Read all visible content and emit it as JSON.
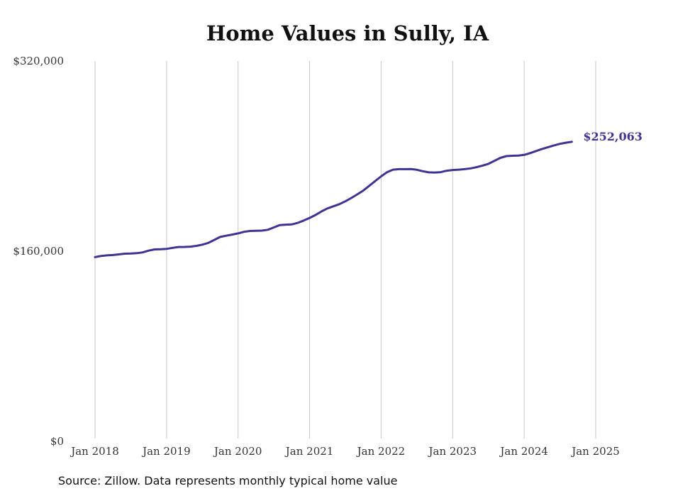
{
  "chart_data": {
    "type": "line",
    "title": "Home Values in Sully, IA",
    "xlabel": "",
    "ylabel": "",
    "ylim": [
      0,
      320000
    ],
    "y_ticks": [
      {
        "value": 0,
        "label": "$0"
      },
      {
        "value": 160000,
        "label": "$160,000"
      },
      {
        "value": 320000,
        "label": "$320,000"
      }
    ],
    "x_ticks": [
      {
        "value": "2018-01",
        "label": "Jan 2018"
      },
      {
        "value": "2019-01",
        "label": "Jan 2019"
      },
      {
        "value": "2020-01",
        "label": "Jan 2020"
      },
      {
        "value": "2021-01",
        "label": "Jan 2021"
      },
      {
        "value": "2022-01",
        "label": "Jan 2022"
      },
      {
        "value": "2023-01",
        "label": "Jan 2023"
      },
      {
        "value": "2024-01",
        "label": "Jan 2024"
      },
      {
        "value": "2025-01",
        "label": "Jan 2025"
      }
    ],
    "grid": {
      "vertical": true,
      "horizontal": false
    },
    "line_color": "#3d3591",
    "grid_color": "#c8c8c8",
    "end_label": "$252,063",
    "series": [
      {
        "points": [
          [
            "2018-01",
            155000
          ],
          [
            "2018-02",
            156000
          ],
          [
            "2018-03",
            156500
          ],
          [
            "2018-04",
            156800
          ],
          [
            "2018-05",
            157300
          ],
          [
            "2018-06",
            157900
          ],
          [
            "2018-07",
            158000
          ],
          [
            "2018-08",
            158300
          ],
          [
            "2018-09",
            159000
          ],
          [
            "2018-10",
            160500
          ],
          [
            "2018-11",
            161500
          ],
          [
            "2018-12",
            161600
          ],
          [
            "2019-01",
            162000
          ],
          [
            "2019-02",
            162800
          ],
          [
            "2019-03",
            163500
          ],
          [
            "2019-04",
            163600
          ],
          [
            "2019-05",
            163800
          ],
          [
            "2019-06",
            164500
          ],
          [
            "2019-07",
            165500
          ],
          [
            "2019-08",
            167000
          ],
          [
            "2019-09",
            169500
          ],
          [
            "2019-10",
            172000
          ],
          [
            "2019-11",
            173000
          ],
          [
            "2019-12",
            174000
          ],
          [
            "2020-01",
            175000
          ],
          [
            "2020-02",
            176300
          ],
          [
            "2020-03",
            177000
          ],
          [
            "2020-04",
            177200
          ],
          [
            "2020-05",
            177300
          ],
          [
            "2020-06",
            178000
          ],
          [
            "2020-07",
            180000
          ],
          [
            "2020-08",
            182000
          ],
          [
            "2020-09",
            182300
          ],
          [
            "2020-10",
            182500
          ],
          [
            "2020-11",
            183800
          ],
          [
            "2020-12",
            185800
          ],
          [
            "2021-01",
            188000
          ],
          [
            "2021-02",
            190500
          ],
          [
            "2021-03",
            193500
          ],
          [
            "2021-04",
            196000
          ],
          [
            "2021-05",
            197800
          ],
          [
            "2021-06",
            199600
          ],
          [
            "2021-07",
            202000
          ],
          [
            "2021-08",
            204800
          ],
          [
            "2021-09",
            207800
          ],
          [
            "2021-10",
            211000
          ],
          [
            "2021-11",
            215000
          ],
          [
            "2021-12",
            219000
          ],
          [
            "2022-01",
            223000
          ],
          [
            "2022-02",
            226500
          ],
          [
            "2022-03",
            228600
          ],
          [
            "2022-04",
            229000
          ],
          [
            "2022-05",
            229000
          ],
          [
            "2022-06",
            229100
          ],
          [
            "2022-07",
            228500
          ],
          [
            "2022-08",
            227300
          ],
          [
            "2022-09",
            226300
          ],
          [
            "2022-10",
            226200
          ],
          [
            "2022-11",
            226500
          ],
          [
            "2022-12",
            227700
          ],
          [
            "2023-01",
            228300
          ],
          [
            "2023-02",
            228600
          ],
          [
            "2023-03",
            229000
          ],
          [
            "2023-04",
            229700
          ],
          [
            "2023-05",
            230700
          ],
          [
            "2023-06",
            232000
          ],
          [
            "2023-07",
            233500
          ],
          [
            "2023-08",
            236000
          ],
          [
            "2023-09",
            238500
          ],
          [
            "2023-10",
            240000
          ],
          [
            "2023-11",
            240300
          ],
          [
            "2023-12",
            240500
          ],
          [
            "2024-01",
            241000
          ],
          [
            "2024-02",
            242500
          ],
          [
            "2024-03",
            244300
          ],
          [
            "2024-04",
            246000
          ],
          [
            "2024-05",
            247500
          ],
          [
            "2024-06",
            249000
          ],
          [
            "2024-07",
            250300
          ],
          [
            "2024-08",
            251300
          ],
          [
            "2024-09",
            252063
          ]
        ]
      }
    ]
  },
  "source_note": "Source: Zillow. Data represents monthly typical home value"
}
